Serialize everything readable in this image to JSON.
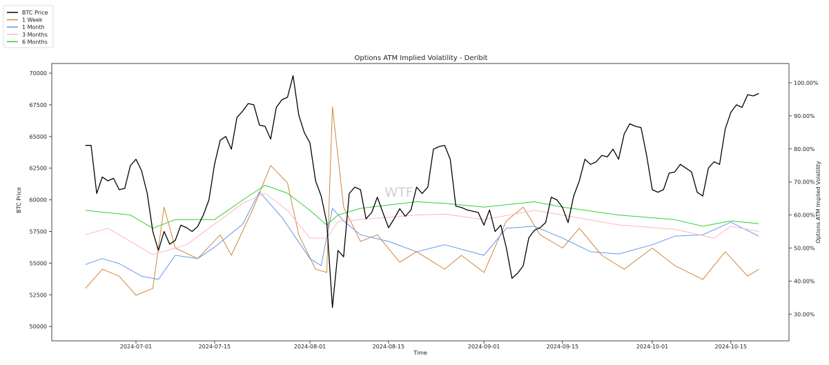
{
  "chart_data": {
    "type": "line",
    "title": "Options ATM Implied Volatility - Deribit",
    "xlabel": "Time",
    "ylabel": "BTC Price",
    "y2label": "Options ATM Implied Volatility",
    "watermark": "WTF",
    "legend_position": "top-left (outside)",
    "grid": false,
    "xlim": [
      "2024-06-17",
      "2024-10-25"
    ],
    "ylim": [
      48900,
      71200
    ],
    "y2lim": [
      23,
      106
    ],
    "x_ticks": [
      "2024-07-01",
      "2024-07-15",
      "2024-08-01",
      "2024-08-15",
      "2024-09-01",
      "2024-09-15",
      "2024-10-01",
      "2024-10-15"
    ],
    "y_ticks": [
      50000,
      52500,
      55000,
      57500,
      60000,
      62500,
      65000,
      67500,
      70000
    ],
    "y2_ticks": [
      "30.00%",
      "40.00%",
      "50.00%",
      "60.00%",
      "70.00%",
      "80.00%",
      "90.00%",
      "100.00%"
    ],
    "y2_tick_values": [
      30,
      40,
      50,
      60,
      70,
      80,
      90,
      100
    ],
    "series": [
      {
        "name": "BTC Price",
        "axis": "left",
        "color": "#000000",
        "start": "2024-06-22",
        "values": [
          64300,
          64300,
          60500,
          61800,
          61500,
          61700,
          60800,
          60900,
          62700,
          63200,
          62300,
          60500,
          57500,
          56000,
          57500,
          56500,
          56800,
          58000,
          57800,
          57500,
          57900,
          58800,
          60000,
          62800,
          64700,
          65000,
          64000,
          66500,
          67000,
          67600,
          67500,
          65900,
          65800,
          64800,
          67300,
          67900,
          68100,
          69800,
          66700,
          65300,
          64500,
          61500,
          60300,
          58200,
          51500,
          56000,
          55500,
          60500,
          61000,
          60800,
          58500,
          59000,
          60200,
          59000,
          57800,
          58500,
          59300,
          58700,
          59200,
          61000,
          60500,
          61000,
          64000,
          64200,
          64300,
          63200,
          59500,
          59400,
          59200,
          59100,
          59000,
          58000,
          59200,
          57500,
          58000,
          56200,
          53800,
          54200,
          54800,
          57000,
          57600,
          57800,
          58200,
          60200,
          60000,
          59400,
          58200,
          60300,
          61500,
          63200,
          62800,
          63000,
          63500,
          63400,
          64000,
          63200,
          65200,
          66000,
          65800,
          65700,
          63500,
          60800,
          60600,
          60800,
          62100,
          62200,
          62800,
          62500,
          62200,
          60600,
          60300,
          62500,
          63000,
          62800,
          65600,
          66900,
          67500,
          67300,
          68300,
          68200,
          68400
        ]
      },
      {
        "name": "1 Week",
        "axis": "right",
        "color": "#d2843a",
        "x": [
          "2024-06-22",
          "2024-06-25",
          "2024-06-28",
          "2024-07-01",
          "2024-07-04",
          "2024-07-06",
          "2024-07-08",
          "2024-07-12",
          "2024-07-16",
          "2024-07-18",
          "2024-07-22",
          "2024-07-25",
          "2024-07-28",
          "2024-07-30",
          "2024-08-02",
          "2024-08-04",
          "2024-08-05",
          "2024-08-07",
          "2024-08-10",
          "2024-08-13",
          "2024-08-17",
          "2024-08-20",
          "2024-08-25",
          "2024-08-28",
          "2024-09-01",
          "2024-09-05",
          "2024-09-08",
          "2024-09-11",
          "2024-09-15",
          "2024-09-18",
          "2024-09-22",
          "2024-09-26",
          "2024-10-01",
          "2024-10-05",
          "2024-10-10",
          "2024-10-14",
          "2024-10-18",
          "2024-10-20"
        ],
        "values": [
          37.8,
          43.6,
          41.5,
          35.7,
          37.8,
          62.4,
          50,
          46.8,
          54,
          47.8,
          62.4,
          75,
          69.7,
          54,
          43.6,
          42.6,
          92.7,
          62.4,
          52,
          54,
          45.7,
          48.9,
          43.6,
          47.8,
          42.6,
          58.2,
          62.4,
          54,
          50,
          56,
          47.8,
          43.6,
          50,
          44.7,
          40.5,
          48.9,
          41.5,
          43.6
        ]
      },
      {
        "name": "1 Month",
        "axis": "right",
        "color": "#6495ed",
        "x": [
          "2024-06-22",
          "2024-06-25",
          "2024-06-28",
          "2024-07-02",
          "2024-07-05",
          "2024-07-08",
          "2024-07-12",
          "2024-07-15",
          "2024-07-20",
          "2024-07-23",
          "2024-07-27",
          "2024-08-01",
          "2024-08-03",
          "2024-08-05",
          "2024-08-07",
          "2024-08-10",
          "2024-08-15",
          "2024-08-20",
          "2024-08-25",
          "2024-09-01",
          "2024-09-05",
          "2024-09-10",
          "2024-09-15",
          "2024-09-20",
          "2024-09-25",
          "2024-10-01",
          "2024-10-05",
          "2024-10-10",
          "2024-10-15",
          "2024-10-20"
        ],
        "values": [
          45,
          46.8,
          45.3,
          41.5,
          40.5,
          47.8,
          46.8,
          50.3,
          57.2,
          67,
          59.3,
          46.8,
          44.7,
          62,
          58.2,
          54,
          52,
          48.9,
          51,
          47.8,
          56,
          56.6,
          53,
          48.9,
          48.2,
          51,
          53.6,
          54,
          57.8,
          53.6
        ]
      },
      {
        "name": "3 Months",
        "axis": "right",
        "color": "#ffb6c1",
        "x": [
          "2024-06-22",
          "2024-06-26",
          "2024-07-04",
          "2024-07-10",
          "2024-07-20",
          "2024-07-24",
          "2024-07-28",
          "2024-08-01",
          "2024-08-04",
          "2024-08-06",
          "2024-08-10",
          "2024-08-20",
          "2024-08-25",
          "2024-09-01",
          "2024-09-10",
          "2024-09-15",
          "2024-09-25",
          "2024-10-05",
          "2024-10-12",
          "2024-10-15",
          "2024-10-20"
        ],
        "values": [
          54,
          56,
          48,
          51,
          63.5,
          66.6,
          61.4,
          53,
          53,
          58,
          58.6,
          60,
          60.3,
          58.6,
          61.4,
          60,
          57,
          55.7,
          53,
          56.6,
          55
        ]
      },
      {
        "name": "6 Months",
        "axis": "right",
        "color": "#32cd32",
        "x": [
          "2024-06-22",
          "2024-06-30",
          "2024-07-04",
          "2024-07-08",
          "2024-07-15",
          "2024-07-20",
          "2024-07-24",
          "2024-07-28",
          "2024-08-01",
          "2024-08-04",
          "2024-08-06",
          "2024-08-10",
          "2024-08-20",
          "2024-08-25",
          "2024-09-01",
          "2024-09-10",
          "2024-09-15",
          "2024-09-25",
          "2024-10-05",
          "2024-10-10",
          "2024-10-15",
          "2024-10-20"
        ],
        "values": [
          61.4,
          60,
          56,
          58.6,
          58.6,
          64.5,
          69,
          66.6,
          61.4,
          57,
          60,
          62,
          64,
          63.5,
          62.4,
          64,
          62.4,
          60,
          58.6,
          56.6,
          58.2,
          57.4
        ]
      }
    ]
  }
}
